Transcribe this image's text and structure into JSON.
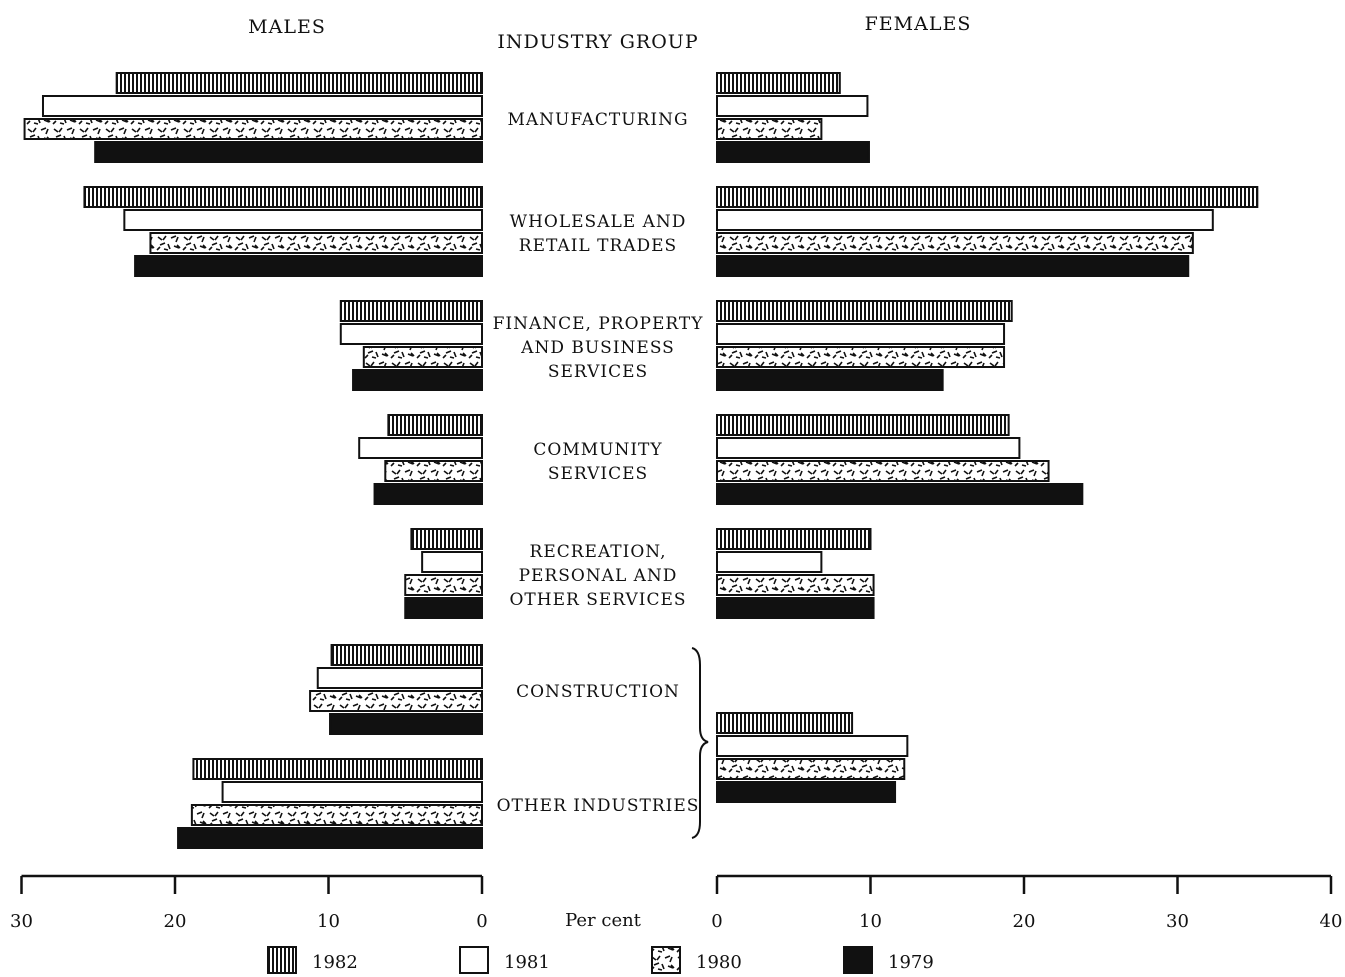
{
  "chart_data": {
    "type": "bar",
    "orientation": "horizontal",
    "layout": "back-to-back",
    "center_title": "INDUSTRY GROUP",
    "left_panel": {
      "title": "MALES",
      "xlim": [
        30,
        0
      ],
      "ticks": [
        "30",
        "20",
        "10",
        "0"
      ]
    },
    "right_panel": {
      "title": "FEMALES",
      "xlim": [
        0,
        40
      ],
      "ticks": [
        "0",
        "10",
        "20",
        "30",
        "40"
      ]
    },
    "axis_unit_label": "Per cent",
    "series": [
      {
        "name": "1982",
        "pattern": "vertical-hatch"
      },
      {
        "name": "1981",
        "pattern": "white"
      },
      {
        "name": "1980",
        "pattern": "speckle"
      },
      {
        "name": "1979",
        "pattern": "solid"
      }
    ],
    "categories": [
      {
        "label": [
          "MANUFACTURING"
        ],
        "males": [
          23.8,
          28.6,
          29.8,
          25.2
        ],
        "females": [
          8.0,
          9.8,
          6.8,
          9.9
        ]
      },
      {
        "label": [
          "WHOLESALE AND",
          "RETAIL TRADES"
        ],
        "males": [
          25.9,
          23.3,
          21.6,
          22.6
        ],
        "females": [
          35.2,
          32.3,
          31.0,
          30.7
        ]
      },
      {
        "label": [
          "FINANCE, PROPERTY",
          "AND BUSINESS",
          "SERVICES"
        ],
        "males": [
          9.2,
          9.2,
          7.7,
          8.4
        ],
        "females": [
          19.2,
          18.7,
          18.7,
          14.7
        ]
      },
      {
        "label": [
          "COMMUNITY",
          "SERVICES"
        ],
        "males": [
          6.1,
          8.0,
          6.3,
          7.0
        ],
        "females": [
          19.0,
          19.7,
          21.6,
          23.8
        ]
      },
      {
        "label": [
          "RECREATION,",
          "PERSONAL AND",
          "OTHER SERVICES"
        ],
        "males": [
          4.6,
          3.9,
          5.0,
          5.0
        ],
        "females": [
          10.0,
          6.8,
          10.2,
          10.2
        ]
      },
      {
        "label": [
          "CONSTRUCTION"
        ],
        "males": [
          9.8,
          10.7,
          11.2,
          9.9
        ],
        "group": "combined-female"
      },
      {
        "label": [
          "OTHER INDUSTRIES"
        ],
        "males": [
          18.8,
          16.9,
          18.9,
          19.8
        ],
        "group": "combined-female"
      }
    ],
    "combined_female": {
      "categories": [
        "CONSTRUCTION",
        "OTHER INDUSTRIES"
      ],
      "values": [
        8.8,
        12.4,
        12.2,
        11.6
      ]
    }
  }
}
